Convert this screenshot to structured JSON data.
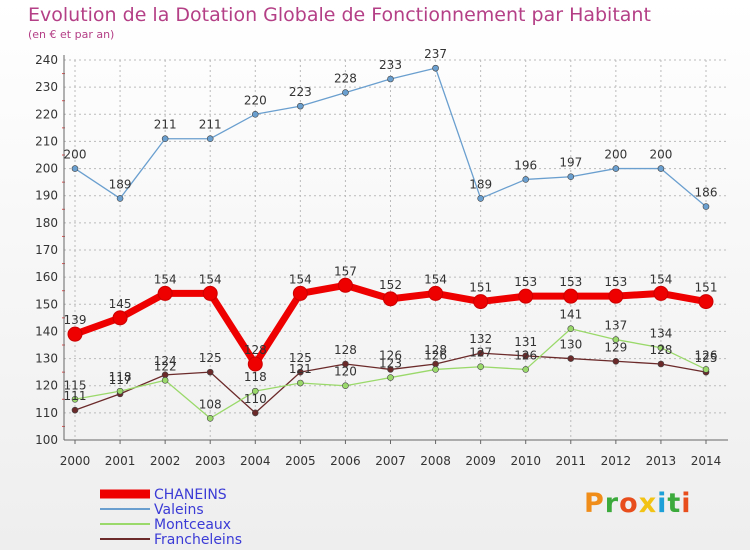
{
  "header": {
    "title": "Evolution de la Dotation Globale de Fonctionnement par Habitant",
    "subtitle": "(en € et par an)"
  },
  "logo": {
    "text": "Proxiti",
    "colors": [
      "#f08d19",
      "#3caa3c",
      "#e84d1c",
      "#f2c314",
      "#1da0d8",
      "#3caa3c",
      "#e84d1c"
    ]
  },
  "colors": {
    "label": "#333333",
    "legend_text": "#3b3bd6",
    "axis": "#666666",
    "grid": "#bbbbbb",
    "tick_mark": "#e05050"
  },
  "chart_data": {
    "type": "line",
    "title": "Evolution de la Dotation Globale de Fonctionnement par Habitant",
    "subtitle": "(en € et par an)",
    "x": [
      "2000",
      "2001",
      "2002",
      "2003",
      "2004",
      "2005",
      "2006",
      "2007",
      "2008",
      "2009",
      "2010",
      "2011",
      "2012",
      "2013",
      "2014"
    ],
    "ylim": [
      100,
      240
    ],
    "yticks": [
      100,
      110,
      120,
      130,
      140,
      150,
      160,
      170,
      180,
      190,
      200,
      210,
      220,
      230,
      240
    ],
    "grid": true,
    "legend_position": "bottom-left",
    "series": [
      {
        "name": "CHANEINS",
        "color": "#ee0000",
        "values": [
          139,
          145,
          154,
          154,
          128,
          154,
          157,
          152,
          154,
          151,
          153,
          153,
          153,
          154,
          151
        ]
      },
      {
        "name": "Valeins",
        "color": "#6a9fcf",
        "values": [
          200,
          189,
          211,
          211,
          220,
          223,
          228,
          233,
          237,
          189,
          196,
          197,
          200,
          200,
          186
        ]
      },
      {
        "name": "Montceaux",
        "color": "#9ad96a",
        "values": [
          115,
          118,
          122,
          108,
          118,
          121,
          120,
          123,
          126,
          127,
          126,
          141,
          137,
          134,
          126
        ]
      },
      {
        "name": "Francheleins",
        "color": "#6b2a2a",
        "values": [
          111,
          117,
          124,
          125,
          110,
          125,
          128,
          126,
          128,
          132,
          131,
          130,
          129,
          128,
          125
        ]
      }
    ]
  }
}
